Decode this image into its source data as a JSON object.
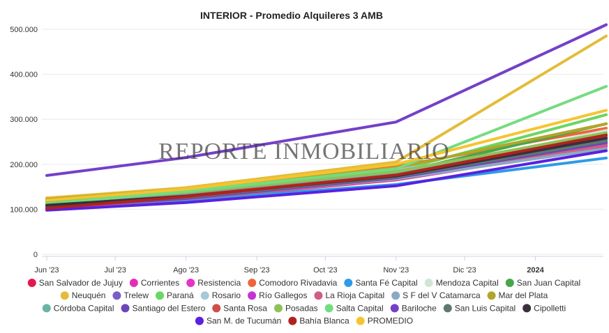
{
  "chart_data": {
    "type": "line",
    "title": "INTERIOR - Promedio Alquileres 3 AMB",
    "watermark": "REPORTE INMOBILIARIO",
    "xlabel": "",
    "ylabel": "",
    "x_dates": [
      "2023-06-01",
      "2023-07-01",
      "2023-08-01",
      "2023-09-01",
      "2023-10-01",
      "2023-11-01",
      "2023-12-01",
      "2024-01-01"
    ],
    "x_tick_labels": [
      "Jun '23",
      "Jul '23",
      "Ago '23",
      "Sep '23",
      "Oct '23",
      "Nov '23",
      "Dic '23",
      "2024"
    ],
    "x_point_dates": [
      "2023-06-01",
      "2023-08-01",
      "2023-11-01",
      "2024-02-01"
    ],
    "y_ticks": [
      0,
      100000,
      200000,
      300000,
      400000,
      500000
    ],
    "y_tick_labels": [
      "0",
      "100.000",
      "200.000",
      "300.000",
      "400.000",
      "500.000"
    ],
    "ylim": [
      0,
      500000
    ],
    "grid": true,
    "legend_position": "bottom",
    "series": [
      {
        "name": "San Salvador de Jujuy",
        "color": "#e6174f",
        "values": [
          105000,
          125000,
          170000,
          250000
        ]
      },
      {
        "name": "Corrientes",
        "color": "#e22fb3",
        "values": [
          102000,
          122000,
          165000,
          240000
        ]
      },
      {
        "name": "Resistencia",
        "color": "#e832c9",
        "values": [
          104000,
          124000,
          168000,
          245000
        ]
      },
      {
        "name": "Comodoro Rivadavia",
        "color": "#f0643a",
        "values": [
          125000,
          145000,
          195000,
          280000
        ]
      },
      {
        "name": "Santa Fé Capital",
        "color": "#2d9be8",
        "values": [
          105000,
          120000,
          155000,
          214000
        ]
      },
      {
        "name": "Mendoza Capital",
        "color": "#d0e6d4",
        "values": [
          110000,
          130000,
          175000,
          275000
        ]
      },
      {
        "name": "San Juan Capital",
        "color": "#46a64c",
        "values": [
          112000,
          132000,
          180000,
          290000
        ]
      },
      {
        "name": "Neuquén",
        "color": "#e3bd3a",
        "values": [
          125000,
          148000,
          205000,
          485000
        ]
      },
      {
        "name": "Trelew",
        "color": "#7a5fc6",
        "values": [
          108000,
          128000,
          172000,
          255000
        ]
      },
      {
        "name": "Paraná",
        "color": "#6ad661",
        "values": [
          118000,
          140000,
          185000,
          310000
        ]
      },
      {
        "name": "Rosario",
        "color": "#a8c8d8",
        "values": [
          120000,
          143000,
          190000,
          230000
        ]
      },
      {
        "name": "Río Gallegos",
        "color": "#c532d6",
        "values": [
          115000,
          138000,
          182000,
          265000
        ]
      },
      {
        "name": "La Rioja Capital",
        "color": "#cf5e80",
        "values": [
          103000,
          123000,
          166000,
          242000
        ]
      },
      {
        "name": "S F del V Catamarca",
        "color": "#8aaac4",
        "values": [
          106000,
          126000,
          168000,
          235000
        ]
      },
      {
        "name": "Mar del Plata",
        "color": "#b1a62a",
        "values": [
          122000,
          145000,
          192000,
          290000
        ]
      },
      {
        "name": "Córdoba Capital",
        "color": "#6ab4a6",
        "values": [
          114000,
          136000,
          180000,
          260000
        ]
      },
      {
        "name": "Santiago del Estero",
        "color": "#6a46b8",
        "values": [
          104000,
          124000,
          170000,
          248000
        ]
      },
      {
        "name": "Santa Rosa",
        "color": "#d04d48",
        "values": [
          108000,
          130000,
          176000,
          262000
        ]
      },
      {
        "name": "Posadas",
        "color": "#8fc159",
        "values": [
          116000,
          138000,
          184000,
          270000
        ]
      },
      {
        "name": "Salta Capital",
        "color": "#75dc7e",
        "values": [
          112000,
          140000,
          190000,
          373000
        ]
      },
      {
        "name": "Bariloche",
        "color": "#7440c8",
        "values": [
          175000,
          215000,
          294000,
          510000
        ]
      },
      {
        "name": "San Luis Capital",
        "color": "#5f7872",
        "values": [
          107000,
          127000,
          172000,
          252000
        ]
      },
      {
        "name": "Cipolletti",
        "color": "#3a2f3c",
        "values": [
          109000,
          129000,
          174000,
          258000
        ]
      },
      {
        "name": "San M. de Tucumán",
        "color": "#5a21e0",
        "values": [
          98000,
          115000,
          152000,
          230000
        ]
      },
      {
        "name": "Bahía Blanca",
        "color": "#b2221d",
        "values": [
          102000,
          128000,
          176000,
          265000
        ]
      },
      {
        "name": "PROMEDIO",
        "color": "#f6c430",
        "values": [
          120000,
          145000,
          200000,
          320000
        ]
      }
    ]
  }
}
